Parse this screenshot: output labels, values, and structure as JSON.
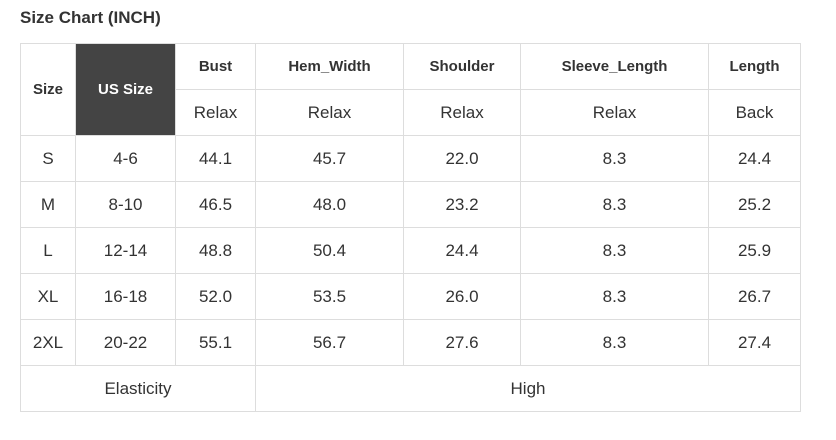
{
  "title": "Size Chart (INCH)",
  "table": {
    "header": [
      "Size",
      "US Size",
      "Bust",
      "Hem_Width",
      "Shoulder",
      "Sleeve_Length",
      "Length"
    ],
    "subheader": [
      "Relax",
      "Relax",
      "Relax",
      "Relax",
      "Back"
    ],
    "rows": [
      [
        "S",
        "4-6",
        "44.1",
        "45.7",
        "22.0",
        "8.3",
        "24.4"
      ],
      [
        "M",
        "8-10",
        "46.5",
        "48.0",
        "23.2",
        "8.3",
        "25.2"
      ],
      [
        "L",
        "12-14",
        "48.8",
        "50.4",
        "24.4",
        "8.3",
        "25.9"
      ],
      [
        "XL",
        "16-18",
        "52.0",
        "53.5",
        "26.0",
        "8.3",
        "26.7"
      ],
      [
        "2XL",
        "20-22",
        "55.1",
        "56.7",
        "27.6",
        "8.3",
        "27.4"
      ]
    ],
    "footer": [
      "Elasticity",
      "High"
    ]
  }
}
